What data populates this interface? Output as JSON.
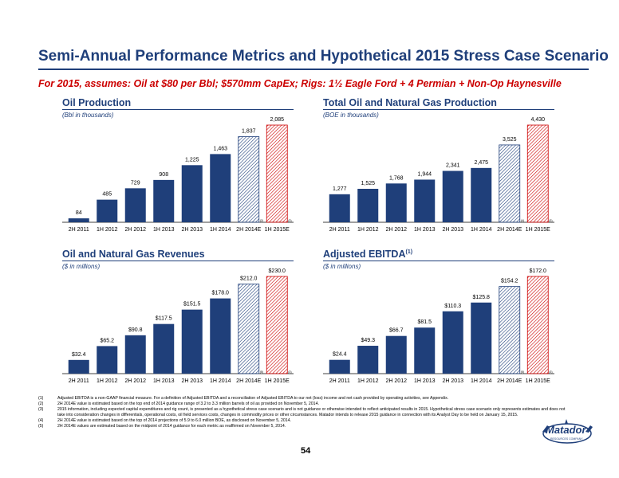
{
  "header": {
    "title": "Semi-Annual Performance Metrics and Hypothetical 2015 Stress Case Scenario",
    "subtitle": "For 2015, assumes: Oil at $80 per Bbl; $570mm CapEx; Rigs: 1½ Eagle Ford + 4 Permian + Non-Op Haynesville"
  },
  "colors": {
    "bar": "#1f3f7a",
    "estimate": "#1f3f7a",
    "stress": "#cc0000",
    "title": "#1f3f7a",
    "subtitle": "#cc0000"
  },
  "chart_data": [
    {
      "id": "oil",
      "type": "bar",
      "title": "Oil Production",
      "title_sup": "",
      "subtitle": "(Bbl in thousands)",
      "categories": [
        "2H 2011",
        "1H 2012",
        "2H 2012",
        "1H 2013",
        "2H 2013",
        "1H 2014",
        "2H 2014E",
        "1H 2015E"
      ],
      "values": [
        84,
        485,
        729,
        908,
        1225,
        1463,
        1837,
        2085
      ],
      "labels": [
        "84",
        "485",
        "729",
        "908",
        "1,225",
        "1,463",
        "1,837",
        "2,085"
      ],
      "styles": [
        "solid",
        "solid",
        "solid",
        "solid",
        "solid",
        "solid",
        "hatch",
        "stress"
      ],
      "notes": [
        "",
        "",
        "",
        "",
        "",
        "",
        "(2)",
        "(3)"
      ],
      "ylim": [
        0,
        2085
      ]
    },
    {
      "id": "boe",
      "type": "bar",
      "title": "Total Oil and Natural Gas Production",
      "title_sup": "",
      "subtitle": "(BOE in thousands)",
      "categories": [
        "2H 2011",
        "1H 2012",
        "2H 2012",
        "1H 2013",
        "2H 2013",
        "1H 2014",
        "2H 2014E",
        "1H 2015E"
      ],
      "values": [
        1277,
        1525,
        1768,
        1944,
        2341,
        2475,
        3525,
        4430
      ],
      "labels": [
        "1,277",
        "1,525",
        "1,768",
        "1,944",
        "2,341",
        "2,475",
        "3,525",
        "4,430"
      ],
      "styles": [
        "solid",
        "solid",
        "solid",
        "solid",
        "solid",
        "solid",
        "hatch",
        "stress"
      ],
      "notes": [
        "",
        "",
        "",
        "",
        "",
        "",
        "(4)",
        "(3)"
      ],
      "ylim": [
        0,
        4430
      ]
    },
    {
      "id": "rev",
      "type": "bar",
      "title": "Oil and Natural Gas Revenues",
      "title_sup": "",
      "subtitle": "($ in millions)",
      "categories": [
        "2H 2011",
        "1H 2012",
        "2H 2012",
        "1H 2013",
        "2H 2013",
        "1H 2014",
        "2H 2014E",
        "1H 2015E"
      ],
      "values": [
        32.4,
        65.2,
        90.8,
        117.5,
        151.5,
        178.0,
        212.0,
        230.0
      ],
      "labels": [
        "$32.4",
        "$65.2",
        "$90.8",
        "$117.5",
        "$151.5",
        "$178.0",
        "$212.0",
        "$230.0"
      ],
      "styles": [
        "solid",
        "solid",
        "solid",
        "solid",
        "solid",
        "solid",
        "hatch",
        "stress"
      ],
      "notes": [
        "",
        "",
        "",
        "",
        "",
        "",
        "(5)",
        "(3)"
      ],
      "ylim": [
        0,
        230
      ]
    },
    {
      "id": "ebitda",
      "type": "bar",
      "title": "Adjusted EBITDA",
      "title_sup": "(1)",
      "subtitle": "($ in millions)",
      "categories": [
        "2H 2011",
        "1H 2012",
        "2H 2012",
        "1H 2013",
        "2H 2013",
        "1H 2014",
        "2H 2014E",
        "1H 2015E"
      ],
      "values": [
        24.4,
        49.3,
        66.7,
        81.5,
        110.3,
        125.8,
        154.2,
        172.0
      ],
      "labels": [
        "$24.4",
        "$49.3",
        "$66.7",
        "$81.5",
        "$110.3",
        "$125.8",
        "$154.2",
        "$172.0"
      ],
      "styles": [
        "solid",
        "solid",
        "solid",
        "solid",
        "solid",
        "solid",
        "hatch",
        "stress"
      ],
      "notes": [
        "",
        "",
        "",
        "",
        "",
        "",
        "(5)",
        "(3)"
      ],
      "ylim": [
        0,
        172
      ]
    }
  ],
  "footnotes": [
    {
      "num": "(1)",
      "text": "Adjusted EBITDA is a non-GAAP financial measure. For a definition of Adjusted EBITDA and a reconciliation of Adjusted EBITDA to our net (loss) income and net cash provided by operating activities, see Appendix."
    },
    {
      "num": "(2)",
      "text": "2H 2014E value is estimated based on the top end of 2014 guidance range of 3.2 to 3.3 million barrels of oil as provided on November 5, 2014."
    },
    {
      "num": "(3)",
      "text": "2015 information, including expected capital expenditures and rig count, is presented as a hypothetical stress case scenario and is not guidance or otherwise intended to reflect anticipated results in 2015. Hypothetical stress case scenario only represents estimates and does not take into consideration changes in differentials, operational costs, oil field services costs, changes in commodity prices or other circumstances. Matador intends to release 2015 guidance in connection with its Analyst Day to be held on January 15, 2015."
    },
    {
      "num": "(4)",
      "text": "2H 2014E value is estimated based on the top of 2014 projections of 5.9 to 6.0 million BOE, as disclosed on November 5, 2014."
    },
    {
      "num": "(5)",
      "text": "2H 2014E values are estimated based on the midpoint of 2014 guidance for each metric as reaffirmed on November 5, 2014."
    }
  ],
  "logo": {
    "name": "Matador",
    "tagline": "RESOURCES COMPANY"
  },
  "page_number": "54"
}
